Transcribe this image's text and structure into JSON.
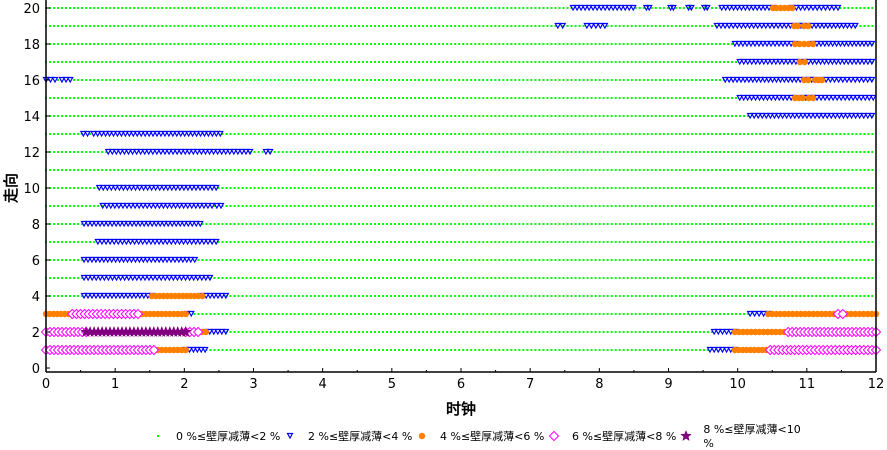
{
  "chart_data": {
    "type": "scatter",
    "xlabel": "时钟",
    "ylabel": "走向",
    "xlim": [
      0,
      12
    ],
    "ylim": [
      0,
      20
    ],
    "xticks": [
      "0",
      "1",
      "2",
      "3",
      "4",
      "5",
      "6",
      "7",
      "8",
      "9",
      "10",
      "11",
      "12"
    ],
    "yticks": [
      "0",
      "2",
      "4",
      "6",
      "8",
      "10",
      "12",
      "14",
      "16",
      "18",
      "20"
    ],
    "grid": false,
    "legend_position": "bottom",
    "categories": [
      {
        "key": "c0",
        "label": "0 %≤壁厚减薄<2 %",
        "color": "#00ff00",
        "marker": "point"
      },
      {
        "key": "c1",
        "label": "2 %≤壁厚减薄<4 %",
        "color": "#0000ff",
        "marker": "triangle-down"
      },
      {
        "key": "c2",
        "label": "4 %≤壁厚减薄<6 %",
        "color": "#ff8000",
        "marker": "circle"
      },
      {
        "key": "c3",
        "label": "6 %≤壁厚减薄<8 %",
        "color": "#ff00ff",
        "marker": "diamond"
      },
      {
        "key": "c4",
        "label": "8 %≤壁厚减薄<10 %",
        "color": "#800080",
        "marker": "star"
      }
    ],
    "default_category": "c0",
    "rows": [
      {
        "y": 1,
        "segments": [
          [
            "c3",
            0,
            1.56
          ],
          [
            "c2",
            1.56,
            2.02
          ],
          [
            "c1",
            2.02,
            2.3
          ],
          [
            "c1",
            9.6,
            9.96
          ],
          [
            "c2",
            9.96,
            10.47
          ],
          [
            "c3",
            10.47,
            12
          ]
        ]
      },
      {
        "y": 2,
        "segments": [
          [
            "c3",
            0,
            0.58
          ],
          [
            "c4",
            0.58,
            2.02
          ],
          [
            "c3",
            2.02,
            2.2
          ],
          [
            "c2",
            2.2,
            2.31
          ],
          [
            "c1",
            2.31,
            2.6
          ],
          [
            "c1",
            9.66,
            9.96
          ],
          [
            "c2",
            9.96,
            10.73
          ],
          [
            "c3",
            10.73,
            12
          ]
        ]
      },
      {
        "y": 3,
        "segments": [
          [
            "c2",
            0,
            0.38
          ],
          [
            "c3",
            0.38,
            1.33
          ],
          [
            "c2",
            1.33,
            2.02
          ],
          [
            "c1",
            2.04,
            2.1
          ],
          [
            "c1",
            10.18,
            10.44
          ],
          [
            "c2",
            10.44,
            11.45
          ],
          [
            "c3",
            11.45,
            11.52
          ],
          [
            "c2",
            11.52,
            12
          ]
        ]
      },
      {
        "y": 4,
        "segments": [
          [
            "c1",
            0.55,
            1.53
          ],
          [
            "c2",
            1.53,
            2.26
          ],
          [
            "c1",
            2.26,
            2.6
          ]
        ]
      },
      {
        "y": 5,
        "segments": [
          [
            "c1",
            0.55,
            2.37
          ]
        ]
      },
      {
        "y": 6,
        "segments": [
          [
            "c1",
            0.55,
            2.15
          ]
        ]
      },
      {
        "y": 7,
        "segments": [
          [
            "c1",
            0.75,
            2.46
          ]
        ]
      },
      {
        "y": 8,
        "segments": [
          [
            "c1",
            0.55,
            2.23
          ]
        ]
      },
      {
        "y": 9,
        "segments": [
          [
            "c1",
            0.82,
            2.4
          ],
          [
            "c1",
            2.47,
            2.53
          ]
        ]
      },
      {
        "y": 10,
        "segments": [
          [
            "c1",
            0.77,
            2.46
          ]
        ]
      },
      {
        "y": 11,
        "segments": []
      },
      {
        "y": 12,
        "segments": [
          [
            "c1",
            0.9,
            2.95
          ],
          [
            "c1",
            3.18,
            3.24
          ]
        ]
      },
      {
        "y": 13,
        "segments": [
          [
            "c1",
            0.54,
            0.6
          ],
          [
            "c1",
            0.69,
            2.52
          ]
        ]
      },
      {
        "y": 14,
        "segments": [
          [
            "c1",
            10.18,
            11.94
          ]
        ]
      },
      {
        "y": 15,
        "segments": [
          [
            "c1",
            10.03,
            10.83
          ],
          [
            "c2",
            10.83,
            10.94
          ],
          [
            "c1",
            10.94,
            11.03
          ],
          [
            "c2",
            11.03,
            11.09
          ],
          [
            "c1",
            11.09,
            11.96
          ]
        ]
      },
      {
        "y": 16,
        "segments": [
          [
            "c1",
            0,
            0.13
          ],
          [
            "c1",
            0.23,
            0.35
          ],
          [
            "c1",
            9.82,
            10.96
          ],
          [
            "c2",
            10.96,
            11.02
          ],
          [
            "c1",
            11.02,
            11.12
          ],
          [
            "c2",
            11.12,
            11.22
          ],
          [
            "c1",
            11.22,
            11.94
          ]
        ]
      },
      {
        "y": 17,
        "segments": [
          [
            "c1",
            10.03,
            10.9
          ],
          [
            "c2",
            10.9,
            10.97
          ],
          [
            "c1",
            10.97,
            11.94
          ]
        ]
      },
      {
        "y": 18,
        "segments": [
          [
            "c1",
            9.96,
            10.83
          ],
          [
            "c2",
            10.83,
            11.09
          ],
          [
            "c1",
            11.09,
            11.94
          ]
        ]
      },
      {
        "y": 19,
        "segments": [
          [
            "c1",
            7.4,
            7.47
          ],
          [
            "c1",
            7.82,
            8.08
          ],
          [
            "c1",
            9.7,
            10.82
          ],
          [
            "c2",
            10.82,
            10.87
          ],
          [
            "c1",
            10.87,
            10.96
          ],
          [
            "c2",
            10.96,
            11.02
          ],
          [
            "c1",
            11.02,
            11.7
          ]
        ]
      },
      {
        "y": 20,
        "segments": [
          [
            "c1",
            7.62,
            8.49
          ],
          [
            "c1",
            8.68,
            8.72
          ],
          [
            "c1",
            9.03,
            9.07
          ],
          [
            "c1",
            9.29,
            9.33
          ],
          [
            "c1",
            9.52,
            9.56
          ],
          [
            "c1",
            9.77,
            10.51
          ],
          [
            "c2",
            10.51,
            10.79
          ],
          [
            "c1",
            10.79,
            11.45
          ]
        ]
      }
    ]
  }
}
